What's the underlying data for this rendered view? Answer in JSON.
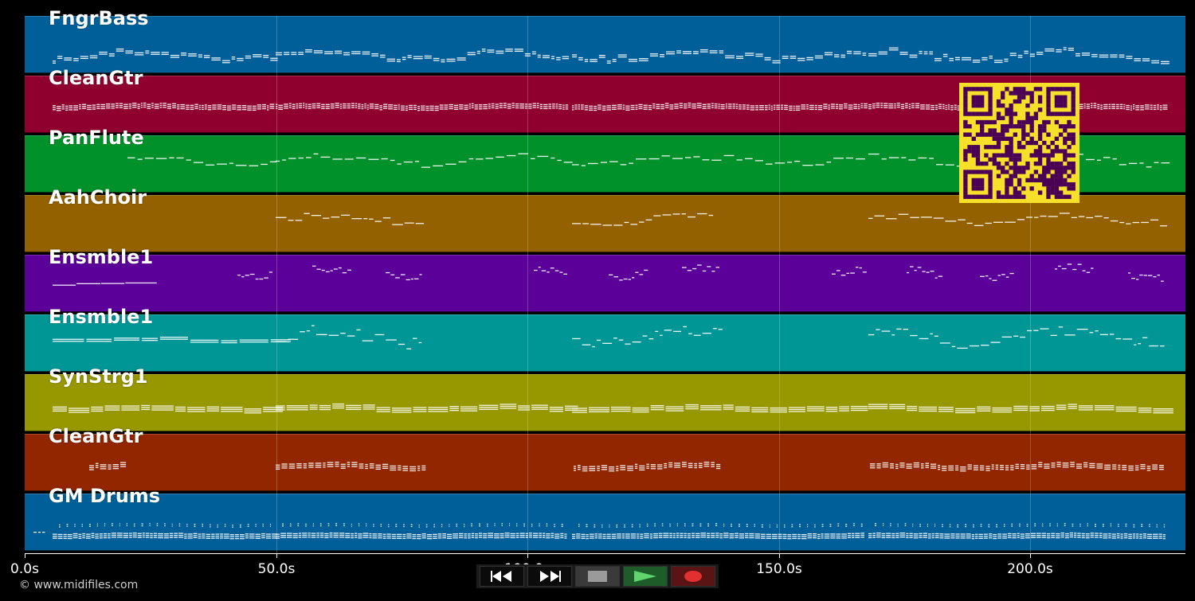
{
  "tracks": [
    {
      "name": "FngrBass",
      "color": "#005f99",
      "pattern": "bass"
    },
    {
      "name": "CleanGtr",
      "color": "#8f002e",
      "pattern": "dense"
    },
    {
      "name": "PanFlute",
      "color": "#00912a",
      "pattern": "flute"
    },
    {
      "name": "AahChoir",
      "color": "#946100",
      "pattern": "choir"
    },
    {
      "name": "Ensmble1",
      "color": "#5c009a",
      "pattern": "ensemble"
    },
    {
      "name": "Ensmble1",
      "color": "#009696",
      "pattern": "ensemble2"
    },
    {
      "name": "SynStrg1",
      "color": "#979700",
      "pattern": "strings"
    },
    {
      "name": "CleanGtr",
      "color": "#912600",
      "pattern": "guitar2"
    },
    {
      "name": "GM Drums",
      "color": "#005f99",
      "pattern": "drums"
    }
  ],
  "timeline": {
    "ticks": [
      "0.0s",
      "50.0s",
      "100.0s",
      "150.0s",
      "200.0s"
    ],
    "tick_seconds": [
      0,
      50,
      100,
      150,
      200
    ],
    "total_seconds": 230.9
  },
  "transport": {
    "rewind_icon": "rewind-icon",
    "forward_icon": "fast-forward-icon",
    "stop_icon": "stop-icon",
    "play_icon": "play-icon",
    "record_icon": "record-icon"
  },
  "copyright": "© www.midifiles.com",
  "qr": {
    "icon": "qr-code-icon",
    "fg": "#4a0055",
    "bg": "#f6e02a"
  }
}
